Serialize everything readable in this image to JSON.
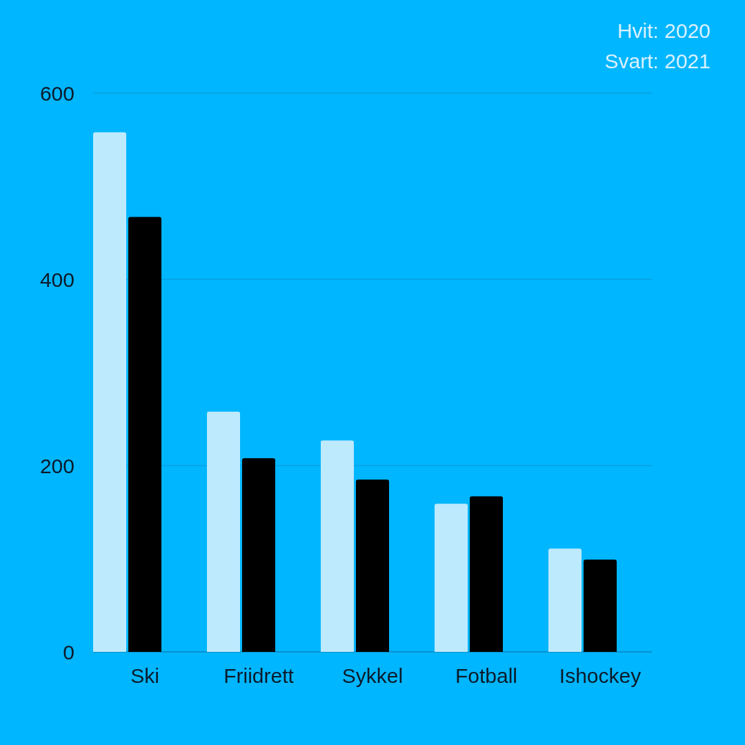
{
  "chart_data": {
    "type": "bar",
    "categories": [
      "Ski",
      "Friidrett",
      "Sykkel",
      "Fotball",
      "Ishockey"
    ],
    "series": [
      {
        "color": "#bdeafd",
        "values": [
          558,
          258,
          227,
          159,
          111
        ]
      },
      {
        "color": "#000000",
        "values": [
          467,
          208,
          185,
          167,
          99
        ]
      }
    ],
    "ylim": [
      0,
      600
    ],
    "yticks": [
      0,
      200,
      400,
      600
    ],
    "grid": "y",
    "annotations": [
      "Hvit: 2020",
      "Svart: 2021"
    ]
  }
}
